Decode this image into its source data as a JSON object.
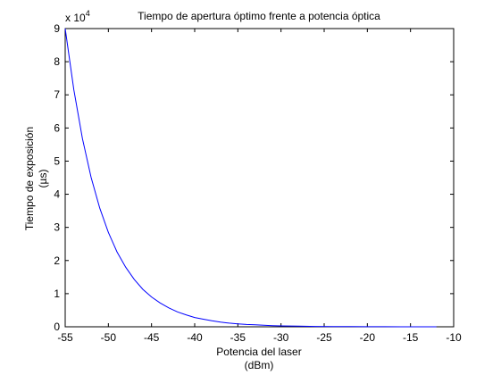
{
  "chart_data": {
    "type": "line",
    "title": "Tiempo de apertura óptimo frente a potencia óptica",
    "xlabel_line1": "Potencia del laser",
    "xlabel_line2": "(dBm)",
    "ylabel_line1": "Tiempo de exposición",
    "ylabel_line2": "(µs)",
    "y_multiplier_prefix": "x 10",
    "y_multiplier_exponent": "4",
    "xlim": [
      -55,
      -10
    ],
    "ylim": [
      0,
      9
    ],
    "x_ticks": [
      -55,
      -50,
      -45,
      -40,
      -35,
      -30,
      -25,
      -20,
      -15,
      -10
    ],
    "x_tick_labels": [
      "-55",
      "-50",
      "-45",
      "-40",
      "-35",
      "-30",
      "-25",
      "-20",
      "-15",
      "-10"
    ],
    "y_ticks": [
      0,
      1,
      2,
      3,
      4,
      5,
      6,
      7,
      8,
      9
    ],
    "y_tick_labels": [
      "0",
      "1",
      "2",
      "3",
      "4",
      "5",
      "6",
      "7",
      "8",
      "9"
    ],
    "grid": false,
    "line_color": "#0000ff",
    "series": [
      {
        "x": [
          -55,
          -54,
          -53,
          -52,
          -51,
          -50,
          -49,
          -48,
          -47,
          -46,
          -45,
          -44,
          -43,
          -42,
          -41,
          -40,
          -39,
          -38,
          -37,
          -36,
          -35,
          -34,
          -33,
          -32,
          -31,
          -30,
          -28,
          -26,
          -24,
          -22,
          -20,
          -18,
          -16,
          -14,
          -12
        ],
        "y": [
          9.0,
          7.15,
          5.68,
          4.51,
          3.58,
          2.85,
          2.26,
          1.8,
          1.43,
          1.13,
          0.9,
          0.72,
          0.57,
          0.45,
          0.36,
          0.28,
          0.23,
          0.18,
          0.14,
          0.11,
          0.09,
          0.07,
          0.06,
          0.045,
          0.036,
          0.028,
          0.018,
          0.011,
          0.007,
          0.005,
          0.003,
          0.002,
          0.001,
          0.001,
          0.0005
        ]
      }
    ]
  }
}
